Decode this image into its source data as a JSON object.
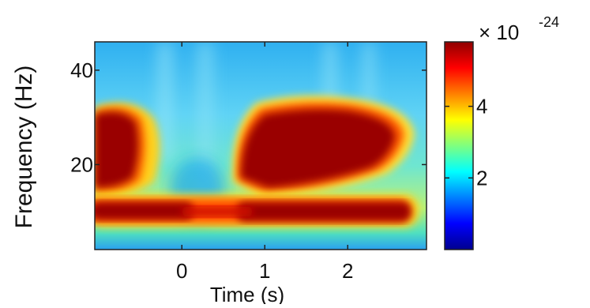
{
  "chart_data": {
    "type": "heatmap",
    "title": "",
    "xlabel": "Time (s)",
    "ylabel": "Frequency (Hz)",
    "xlim": [
      -1.05,
      2.95
    ],
    "ylim": [
      2,
      46
    ],
    "x_ticks": [
      {
        "value": 0,
        "label": "0"
      },
      {
        "value": 1,
        "label": "1"
      },
      {
        "value": 2,
        "label": "2"
      }
    ],
    "y_ticks": [
      {
        "value": 20,
        "label": "20"
      },
      {
        "value": 40,
        "label": "40"
      }
    ],
    "colorbar": {
      "colormap": "jet",
      "range": [
        0,
        5.8
      ],
      "multiplier_label": "× 10",
      "exponent_label": "-24",
      "ticks": [
        {
          "value": 2,
          "label": "2"
        },
        {
          "value": 4,
          "label": "4"
        }
      ]
    },
    "regions": [
      {
        "name": "background gradient",
        "description": "light blue near 40 Hz, cyan/green toward 10 Hz"
      },
      {
        "name": "left high-power blob",
        "t": [
          -1.05,
          -0.55
        ],
        "f": [
          14,
          30
        ],
        "value": 5.8
      },
      {
        "name": "right high-power blob",
        "t": [
          0.7,
          2.6
        ],
        "f": [
          14,
          32
        ],
        "value": 5.8
      },
      {
        "name": "low-frequency band",
        "t": [
          -1.05,
          2.95
        ],
        "f": [
          8,
          12
        ],
        "value": 5.8
      },
      {
        "name": "low-power trough near 0 s",
        "t": [
          -0.3,
          0.6
        ],
        "f": [
          12,
          46
        ],
        "value": 1.5
      }
    ]
  }
}
